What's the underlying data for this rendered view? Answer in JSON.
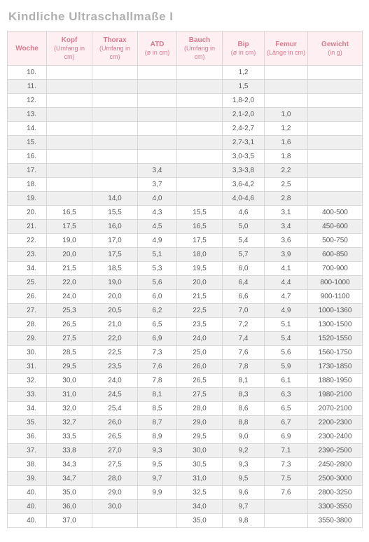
{
  "title": "Kindliche  Ultraschallmaße I",
  "columns": [
    {
      "key": "woche",
      "label": "Woche",
      "sub": ""
    },
    {
      "key": "kopf",
      "label": "Kopf",
      "sub": "(Umfang in cm)"
    },
    {
      "key": "thorax",
      "label": "Thorax",
      "sub": "(Umfang in cm)"
    },
    {
      "key": "atd",
      "label": "ATD",
      "sub": "(ø in cm)"
    },
    {
      "key": "bauch",
      "label": "Bauch",
      "sub": "(Umfang in cm)"
    },
    {
      "key": "bip",
      "label": "Bip",
      "sub": "(ø in cm)"
    },
    {
      "key": "femur",
      "label": "Femur",
      "sub": "(Länge in cm)"
    },
    {
      "key": "gewicht",
      "label": "Gewicht",
      "sub": "(in g)"
    }
  ],
  "rows": [
    {
      "woche": "10.",
      "kopf": "",
      "thorax": "",
      "atd": "",
      "bauch": "",
      "bip": "1,2",
      "femur": "",
      "gewicht": ""
    },
    {
      "woche": "11.",
      "kopf": "",
      "thorax": "",
      "atd": "",
      "bauch": "",
      "bip": "1,5",
      "femur": "",
      "gewicht": ""
    },
    {
      "woche": "12.",
      "kopf": "",
      "thorax": "",
      "atd": "",
      "bauch": "",
      "bip": "1,8-2,0",
      "femur": "",
      "gewicht": ""
    },
    {
      "woche": "13.",
      "kopf": "",
      "thorax": "",
      "atd": "",
      "bauch": "",
      "bip": "2,1-2,0",
      "femur": "1,0",
      "gewicht": ""
    },
    {
      "woche": "14.",
      "kopf": "",
      "thorax": "",
      "atd": "",
      "bauch": "",
      "bip": "2,4-2,7",
      "femur": "1,2",
      "gewicht": ""
    },
    {
      "woche": "15.",
      "kopf": "",
      "thorax": "",
      "atd": "",
      "bauch": "",
      "bip": "2,7-3,1",
      "femur": "1,6",
      "gewicht": ""
    },
    {
      "woche": "16.",
      "kopf": "",
      "thorax": "",
      "atd": "",
      "bauch": "",
      "bip": "3,0-3,5",
      "femur": "1,8",
      "gewicht": ""
    },
    {
      "woche": "17.",
      "kopf": "",
      "thorax": "",
      "atd": "3,4",
      "bauch": "",
      "bip": "3,3-3,8",
      "femur": "2,2",
      "gewicht": ""
    },
    {
      "woche": "18.",
      "kopf": "",
      "thorax": "",
      "atd": "3,7",
      "bauch": "",
      "bip": "3,6-4,2",
      "femur": "2,5",
      "gewicht": ""
    },
    {
      "woche": "19.",
      "kopf": "",
      "thorax": "14,0",
      "atd": "4,0",
      "bauch": "",
      "bip": "4,0-4,6",
      "femur": "2,8",
      "gewicht": ""
    },
    {
      "woche": "20.",
      "kopf": "16,5",
      "thorax": "15,5",
      "atd": "4,3",
      "bauch": "15,5",
      "bip": "4,6",
      "femur": "3,1",
      "gewicht": "400-500"
    },
    {
      "woche": "21.",
      "kopf": "17,5",
      "thorax": "16,0",
      "atd": "4,5",
      "bauch": "16,5",
      "bip": "5,0",
      "femur": "3,4",
      "gewicht": "450-600"
    },
    {
      "woche": "22.",
      "kopf": "19,0",
      "thorax": "17,0",
      "atd": "4,9",
      "bauch": "17,5",
      "bip": "5,4",
      "femur": "3,6",
      "gewicht": "500-750"
    },
    {
      "woche": "23.",
      "kopf": "20,0",
      "thorax": "17,5",
      "atd": "5,1",
      "bauch": "18,0",
      "bip": "5,7",
      "femur": "3,9",
      "gewicht": "600-850"
    },
    {
      "woche": "34.",
      "kopf": "21,5",
      "thorax": "18,5",
      "atd": "5,3",
      "bauch": "19,5",
      "bip": "6,0",
      "femur": "4,1",
      "gewicht": "700-900"
    },
    {
      "woche": "25.",
      "kopf": "22,0",
      "thorax": "19,0",
      "atd": "5,6",
      "bauch": "20,0",
      "bip": "6,4",
      "femur": "4,4",
      "gewicht": "800-1000"
    },
    {
      "woche": "26.",
      "kopf": "24,0",
      "thorax": "20,0",
      "atd": "6,0",
      "bauch": "21,5",
      "bip": "6,6",
      "femur": "4,7",
      "gewicht": "900-1100"
    },
    {
      "woche": "27.",
      "kopf": "25,3",
      "thorax": "20,5",
      "atd": "6,2",
      "bauch": "22,5",
      "bip": "7,0",
      "femur": "4,9",
      "gewicht": "1000-1360"
    },
    {
      "woche": "28.",
      "kopf": "26,5",
      "thorax": "21,0",
      "atd": "6,5",
      "bauch": "23,5",
      "bip": "7,2",
      "femur": "5,1",
      "gewicht": "1300-1500"
    },
    {
      "woche": "29.",
      "kopf": "27,5",
      "thorax": "22,0",
      "atd": "6,9",
      "bauch": "24,0",
      "bip": "7,4",
      "femur": "5,4",
      "gewicht": "1520-1550"
    },
    {
      "woche": "30.",
      "kopf": "28,5",
      "thorax": "22,5",
      "atd": "7,3",
      "bauch": "25,0",
      "bip": "7,6",
      "femur": "5,6",
      "gewicht": "1560-1750"
    },
    {
      "woche": "31.",
      "kopf": "29,5",
      "thorax": "23,5",
      "atd": "7,6",
      "bauch": "26,0",
      "bip": "7,8",
      "femur": "5,9",
      "gewicht": "1730-1850"
    },
    {
      "woche": "32.",
      "kopf": "30,0",
      "thorax": "24,0",
      "atd": "7,8",
      "bauch": "26,5",
      "bip": "8,1",
      "femur": "6,1",
      "gewicht": "1880-1950"
    },
    {
      "woche": "33.",
      "kopf": "31,0",
      "thorax": "24,5",
      "atd": "8,1",
      "bauch": "27,5",
      "bip": "8,3",
      "femur": "6,3",
      "gewicht": "1980-2100"
    },
    {
      "woche": "34.",
      "kopf": "32,0",
      "thorax": "25,4",
      "atd": "8,5",
      "bauch": "28,0",
      "bip": "8,6",
      "femur": "6,5",
      "gewicht": "2070-2100"
    },
    {
      "woche": "35.",
      "kopf": "32,7",
      "thorax": "26,0",
      "atd": "8,7",
      "bauch": "29,0",
      "bip": "8,8",
      "femur": "6,7",
      "gewicht": "2200-2300"
    },
    {
      "woche": "36.",
      "kopf": "33,5",
      "thorax": "26,5",
      "atd": "8,9",
      "bauch": "29,5",
      "bip": "9,0",
      "femur": "6,9",
      "gewicht": "2300-2400"
    },
    {
      "woche": "37.",
      "kopf": "33,8",
      "thorax": "27,0",
      "atd": "9,3",
      "bauch": "30,0",
      "bip": "9,2",
      "femur": "7,1",
      "gewicht": "2390-2500"
    },
    {
      "woche": "38.",
      "kopf": "34,3",
      "thorax": "27,5",
      "atd": "9,5",
      "bauch": "30,5",
      "bip": "9,3",
      "femur": "7,3",
      "gewicht": "2450-2800"
    },
    {
      "woche": "39.",
      "kopf": "34,7",
      "thorax": "28,0",
      "atd": "9,7",
      "bauch": "31,0",
      "bip": "9,5",
      "femur": "7,5",
      "gewicht": "2500-3000"
    },
    {
      "woche": "40.",
      "kopf": "35,0",
      "thorax": "29,0",
      "atd": "9,9",
      "bauch": "32,5",
      "bip": "9,6",
      "femur": "7,6",
      "gewicht": "2800-3250"
    },
    {
      "woche": "40.",
      "kopf": "36,0",
      "thorax": "30,0",
      "atd": "",
      "bauch": "34,0",
      "bip": "9,7",
      "femur": "",
      "gewicht": "3300-3550"
    },
    {
      "woche": "40.",
      "kopf": "37,0",
      "thorax": "",
      "atd": "",
      "bauch": "35,0",
      "bip": "9,8",
      "femur": "",
      "gewicht": "3550-3800"
    }
  ],
  "colClasses": [
    "c-woche",
    "c-kopf",
    "c-thorax",
    "c-atd",
    "c-bauch",
    "c-bip",
    "c-femur",
    "c-gew"
  ]
}
